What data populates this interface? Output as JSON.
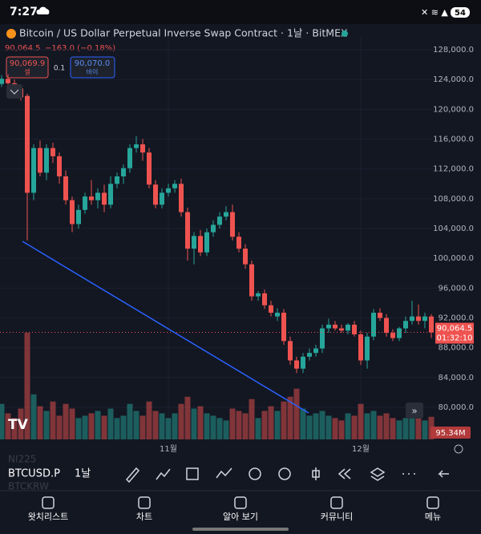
{
  "status_bar": {
    "time": "7:27",
    "battery": "54"
  },
  "header": {
    "title": "Bitcoin / US Dollar Perpetual Inverse Swap Contract · 1날 · BitMEX",
    "price": "90,064.5",
    "change": "−163.0 (−0.18%)",
    "sell_price": "90,069.9",
    "sell_label": "셀",
    "spread": "0.1",
    "buy_price": "90,070.0",
    "buy_label": "바이"
  },
  "chart_data": {
    "type": "candlestick",
    "categories": [
      null,
      null,
      null,
      null,
      null,
      null,
      null,
      null,
      null,
      null,
      null,
      null,
      null,
      null,
      null,
      null,
      null,
      null,
      null,
      null,
      null,
      null,
      null,
      null,
      null,
      null,
      "11월",
      null,
      null,
      null,
      null,
      null,
      null,
      null,
      null,
      null,
      null,
      null,
      null,
      null,
      null,
      null,
      null,
      null,
      null,
      null,
      null,
      null,
      null,
      null,
      null,
      null,
      null,
      null,
      null,
      null,
      "12월",
      null,
      null,
      null,
      null,
      null,
      null,
      null,
      null,
      null,
      null,
      null
    ],
    "open": [
      123400,
      124100,
      123500,
      122800,
      121800,
      108800,
      114800,
      111500,
      114800,
      113700,
      111000,
      107800,
      104600,
      106500,
      108300,
      107800,
      108800,
      107200,
      110000,
      111000,
      112100,
      114800,
      115300,
      114200,
      109900,
      107200,
      108800,
      109400,
      110000,
      106200,
      101300,
      103000,
      100800,
      103500,
      104500,
      105600,
      106200,
      102900,
      101300,
      99200,
      94900,
      95300,
      93700,
      92200,
      92700,
      88900,
      86300,
      85200,
      86800,
      87300,
      87900,
      90600,
      91100,
      90600,
      90300,
      91100,
      89800,
      86300,
      89500,
      92700,
      92000,
      90000,
      89300,
      90600,
      91600,
      92200,
      91600,
      92200
    ],
    "high": [
      124600,
      124700,
      124000,
      123300,
      122100,
      115300,
      115800,
      115300,
      115500,
      114200,
      111800,
      108300,
      107200,
      108800,
      110500,
      109400,
      109900,
      111000,
      111500,
      112600,
      115300,
      116400,
      116000,
      114800,
      110500,
      109400,
      110000,
      110500,
      110700,
      106800,
      103500,
      103800,
      104000,
      105100,
      106200,
      107000,
      107200,
      103500,
      101900,
      99700,
      95600,
      95800,
      94300,
      93300,
      93200,
      89500,
      86800,
      87300,
      87900,
      88400,
      91100,
      91900,
      91600,
      91100,
      91300,
      91600,
      90300,
      90000,
      93200,
      93300,
      92500,
      90500,
      90800,
      92200,
      94300,
      93800,
      92700,
      92500
    ],
    "low": [
      123000,
      123200,
      121800,
      121200,
      102400,
      107800,
      111000,
      110500,
      112800,
      110000,
      107200,
      103500,
      104000,
      106000,
      107200,
      106700,
      106200,
      106700,
      109400,
      110000,
      111500,
      114200,
      113100,
      109400,
      106700,
      106700,
      108300,
      108800,
      105600,
      99700,
      99200,
      100300,
      100300,
      102900,
      104000,
      105100,
      102400,
      100800,
      98600,
      94300,
      94300,
      93200,
      92200,
      91600,
      88400,
      85700,
      84600,
      84600,
      86300,
      86800,
      87300,
      90000,
      90300,
      90000,
      89800,
      89500,
      85700,
      85200,
      89000,
      91600,
      89500,
      88900,
      88900,
      90000,
      91100,
      91100,
      90600,
      89300
    ],
    "close": [
      124100,
      123500,
      122800,
      121600,
      108800,
      114800,
      111500,
      114800,
      113700,
      111000,
      107800,
      104600,
      106500,
      108300,
      107800,
      108800,
      107200,
      110000,
      111000,
      112100,
      114800,
      115300,
      114200,
      109900,
      107200,
      108800,
      109400,
      110000,
      106200,
      101300,
      103000,
      100800,
      103500,
      104500,
      105600,
      106200,
      102900,
      101300,
      99200,
      94900,
      95300,
      93700,
      92700,
      92700,
      88900,
      86300,
      85200,
      86800,
      87300,
      87900,
      90600,
      91100,
      90600,
      90300,
      91100,
      89800,
      86300,
      89500,
      92700,
      92000,
      90000,
      89300,
      90600,
      91600,
      92200,
      91600,
      92200,
      90064.5
    ],
    "volume": [
      150,
      110,
      90,
      130,
      450,
      190,
      140,
      120,
      160,
      100,
      150,
      130,
      90,
      100,
      110,
      120,
      100,
      130,
      90,
      100,
      150,
      120,
      100,
      160,
      120,
      110,
      90,
      110,
      150,
      180,
      130,
      140,
      110,
      100,
      90,
      80,
      130,
      120,
      110,
      170,
      90,
      120,
      140,
      120,
      160,
      180,
      214,
      130,
      100,
      110,
      120,
      100,
      90,
      80,
      110,
      100,
      150,
      110,
      120,
      100,
      110,
      90,
      80,
      90,
      100,
      90,
      80,
      95.34
    ],
    "volume_lim": [
      0,
      450
    ],
    "last_volume_label": "95.34M",
    "up_color": "#26a69a",
    "down_color": "#ef5350",
    "ylim": [
      75700,
      129830
    ],
    "yticks": [
      {
        "value": 80000,
        "label": "80,000.0"
      },
      {
        "value": 84000,
        "label": "84,000.0"
      },
      {
        "value": 88000,
        "label": "88,000.0"
      },
      {
        "value": 92000,
        "label": "92,000.0"
      },
      {
        "value": 96000,
        "label": "96,000.0"
      },
      {
        "value": 100000,
        "label": "100,000.0"
      },
      {
        "value": 104000,
        "label": "104,000.0"
      },
      {
        "value": 108000,
        "label": "108,000.0"
      },
      {
        "value": 112000,
        "label": "112,000.0"
      },
      {
        "value": 116000,
        "label": "116,000.0"
      },
      {
        "value": 120000,
        "label": "120,000.0"
      },
      {
        "value": 124000,
        "label": "124,000.0"
      },
      {
        "value": 128000,
        "label": "128,000.0"
      }
    ],
    "last_price": {
      "value": 90064.5,
      "label": "90,064.5",
      "countdown": "01:32:10"
    }
  },
  "toolbar": {
    "symbol": "BTCUSD.P",
    "interval": "1날",
    "ghost_above": "NI225",
    "ghost_below": "BTCKRW"
  },
  "nav": [
    "왓치리스트",
    "차트",
    "알아 보기",
    "커뮤니티",
    "메뉴"
  ]
}
